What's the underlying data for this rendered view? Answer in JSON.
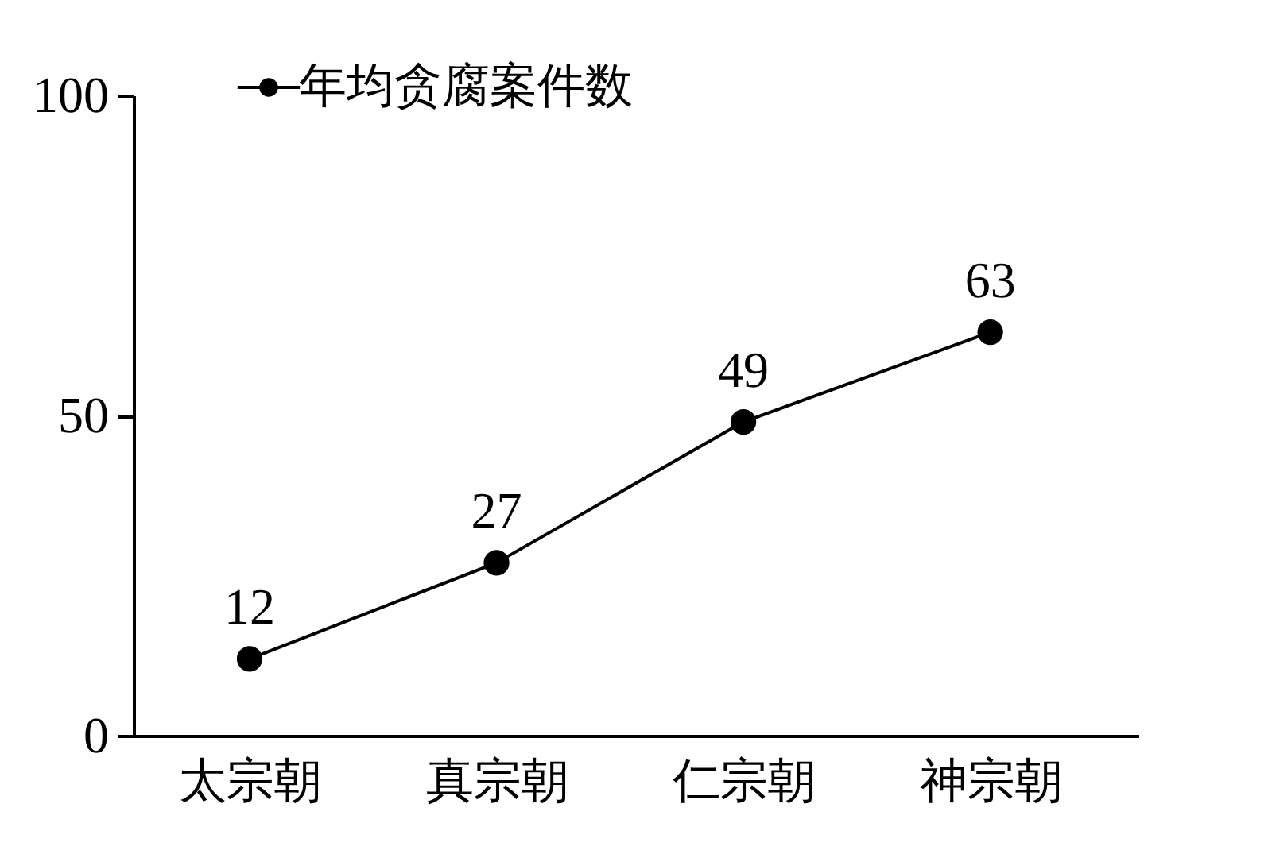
{
  "chart_data": {
    "type": "line",
    "categories": [
      "太宗朝",
      "真宗朝",
      "仁宗朝",
      "神宗朝"
    ],
    "series": [
      {
        "name": "年均贪腐案件数",
        "color": "#000000",
        "values": [
          12,
          27,
          49,
          63
        ]
      }
    ],
    "ylim": [
      0,
      100
    ],
    "yticks": [
      0,
      50,
      100
    ],
    "data_labels": true,
    "marker": "circle",
    "legend": "top left",
    "grid": false,
    "line_style": "solid"
  }
}
